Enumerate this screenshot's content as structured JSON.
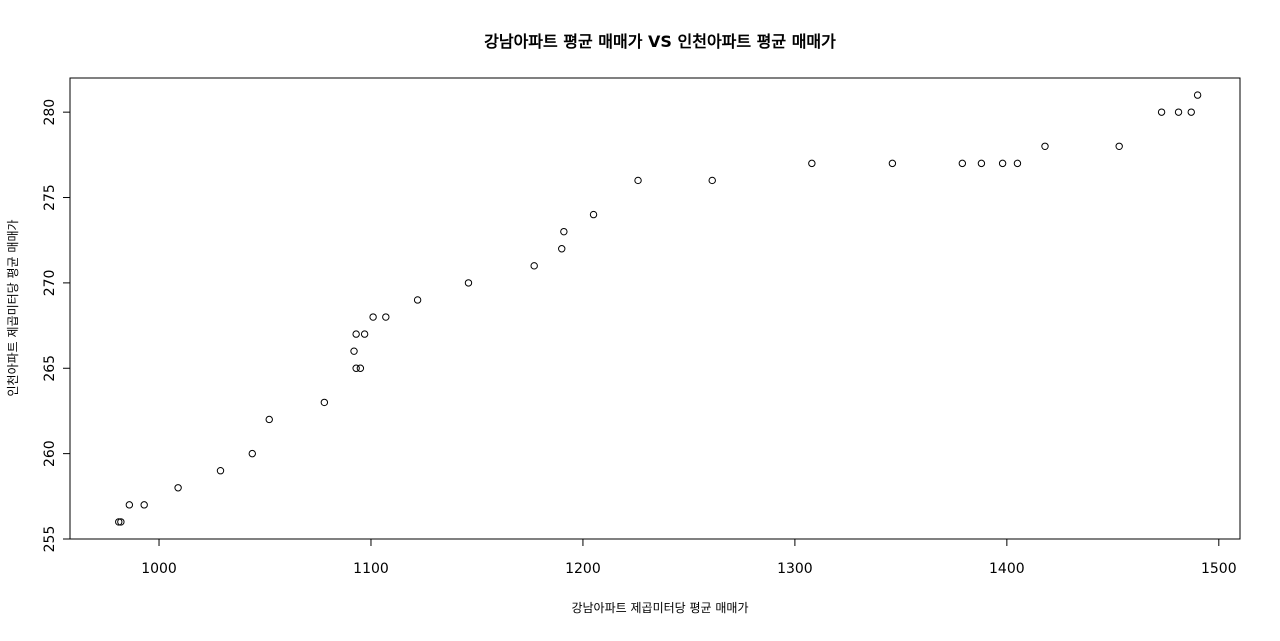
{
  "chart_data": {
    "type": "scatter",
    "title": "강남아파트 평균 매매가 VS 인천아파트 평균 매매가",
    "xlabel": "강남아파트 제곱미터당 평균 매매가",
    "ylabel": "인천아파트 제곱미터당 평균 매매가",
    "xlim": [
      958,
      1510
    ],
    "ylim": [
      255,
      282
    ],
    "x_ticks": [
      1000,
      1100,
      1200,
      1300,
      1400,
      1500
    ],
    "y_ticks": [
      255,
      260,
      265,
      270,
      275,
      280
    ],
    "grid": false,
    "marker": "open-circle",
    "marker_color": "#000000",
    "series": [
      {
        "points": [
          {
            "x": 981,
            "y": 256
          },
          {
            "x": 982,
            "y": 256
          },
          {
            "x": 986,
            "y": 257
          },
          {
            "x": 993,
            "y": 257
          },
          {
            "x": 1009,
            "y": 258
          },
          {
            "x": 1029,
            "y": 259
          },
          {
            "x": 1044,
            "y": 260
          },
          {
            "x": 1052,
            "y": 262
          },
          {
            "x": 1078,
            "y": 263
          },
          {
            "x": 1092,
            "y": 266
          },
          {
            "x": 1093,
            "y": 265
          },
          {
            "x": 1093,
            "y": 267
          },
          {
            "x": 1095,
            "y": 265
          },
          {
            "x": 1097,
            "y": 267
          },
          {
            "x": 1101,
            "y": 268
          },
          {
            "x": 1107,
            "y": 268
          },
          {
            "x": 1122,
            "y": 269
          },
          {
            "x": 1146,
            "y": 270
          },
          {
            "x": 1177,
            "y": 271
          },
          {
            "x": 1190,
            "y": 272
          },
          {
            "x": 1191,
            "y": 273
          },
          {
            "x": 1205,
            "y": 274
          },
          {
            "x": 1226,
            "y": 276
          },
          {
            "x": 1261,
            "y": 276
          },
          {
            "x": 1308,
            "y": 277
          },
          {
            "x": 1346,
            "y": 277
          },
          {
            "x": 1379,
            "y": 277
          },
          {
            "x": 1388,
            "y": 277
          },
          {
            "x": 1398,
            "y": 277
          },
          {
            "x": 1405,
            "y": 277
          },
          {
            "x": 1418,
            "y": 278
          },
          {
            "x": 1453,
            "y": 278
          },
          {
            "x": 1473,
            "y": 280
          },
          {
            "x": 1481,
            "y": 280
          },
          {
            "x": 1487,
            "y": 280
          },
          {
            "x": 1490,
            "y": 281
          }
        ]
      }
    ]
  }
}
